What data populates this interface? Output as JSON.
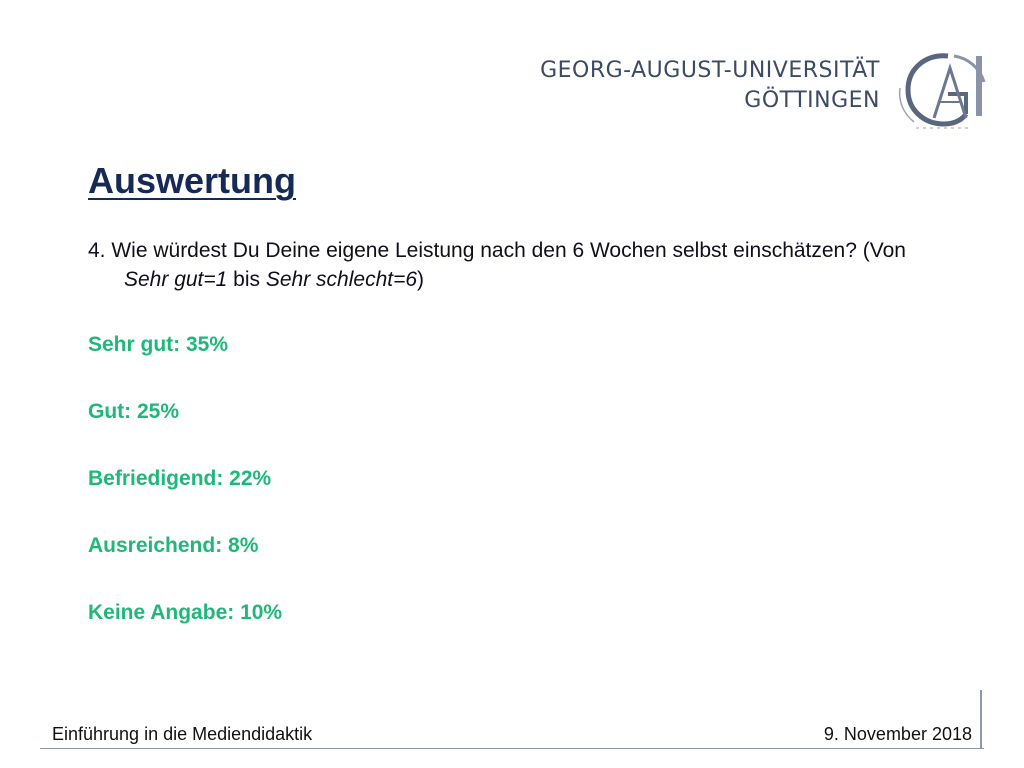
{
  "header": {
    "university_line1": "GEORG-AUGUST-UNIVERSITÄT",
    "university_line2": "GÖTTINGEN"
  },
  "slide": {
    "title": "Auswertung",
    "question": {
      "prefix": "4. Wie würdest Du Deine eigene Leistung nach den 6 Wochen selbst einschätzen? (Von ",
      "em1": "Sehr gut=1",
      "middle": " bis ",
      "em2": "Sehr schlecht=6",
      "suffix": ")"
    },
    "answers": [
      "Sehr gut: 35%",
      "Gut: 25%",
      "Befriedigend: 22%",
      "Ausreichend: 8%",
      "Keine Angabe: 10%"
    ]
  },
  "footer": {
    "course": "Einführung in die Mediendidaktik",
    "date": "9. November 2018"
  },
  "colors": {
    "title": "#172a55",
    "answers": "#1fb87a",
    "university": "#3d4a66"
  }
}
